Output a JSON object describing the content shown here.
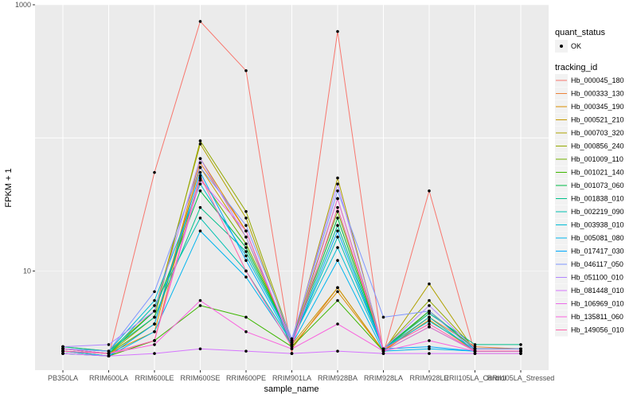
{
  "chart_data": {
    "type": "line",
    "xlabel": "sample_name",
    "ylabel": "FPKM + 1",
    "y_scale": "log10",
    "ylim": [
      1.8,
      1000
    ],
    "y_ticks": [
      {
        "value": 10,
        "label": "10"
      },
      {
        "value": 1000,
        "label": "1000"
      }
    ],
    "grid": true,
    "categories": [
      "PB350LA",
      "RRIM600LA",
      "RRIM600LE",
      "RRIM600SE",
      "RRIM600PE",
      "RRIM901LA",
      "RRIM928BA",
      "RRIM928LA",
      "RRIM928LE",
      "RRII105LA_Control",
      "RRII105LA_Stressed"
    ],
    "legend_groups": [
      {
        "title": "quant_status",
        "entries": [
          "OK"
        ]
      },
      {
        "title": "tracking_id"
      }
    ],
    "series": [
      {
        "name": "Hb_000045_180",
        "color": "#F8766D",
        "values": [
          2.5,
          2.3,
          55,
          750,
          320,
          2.4,
          630,
          2.4,
          40,
          2.4,
          2.4
        ]
      },
      {
        "name": "Hb_000333_130",
        "color": "#EC8239",
        "values": [
          2.5,
          2.3,
          3.0,
          65,
          20,
          2.6,
          7.5,
          2.5,
          4.5,
          2.7,
          2.6
        ]
      },
      {
        "name": "Hb_000345_190",
        "color": "#DB8E00",
        "values": [
          2.6,
          2.4,
          3.5,
          70,
          20,
          2.7,
          7.0,
          2.5,
          4.3,
          2.5,
          2.5
        ]
      },
      {
        "name": "Hb_000521_210",
        "color": "#C79800",
        "values": [
          2.5,
          2.3,
          4.0,
          60,
          18,
          2.8,
          7.5,
          2.5,
          5.0,
          2.6,
          2.6
        ]
      },
      {
        "name": "Hb_000703_320",
        "color": "#AFA100",
        "values": [
          2.7,
          2.5,
          5.0,
          90,
          25,
          2.9,
          50,
          2.5,
          8.0,
          2.5,
          2.5
        ]
      },
      {
        "name": "Hb_000856_240",
        "color": "#94A900",
        "values": [
          2.6,
          2.4,
          4.5,
          95,
          28,
          3.0,
          35,
          2.6,
          6.0,
          2.6,
          2.6
        ]
      },
      {
        "name": "Hb_001009_110",
        "color": "#72B000",
        "values": [
          2.5,
          2.4,
          4.0,
          50,
          16,
          3.0,
          28,
          2.6,
          5.0,
          2.5,
          2.5
        ]
      },
      {
        "name": "Hb_001021_140",
        "color": "#3DB700",
        "values": [
          2.4,
          2.3,
          3.0,
          5.5,
          4.5,
          2.7,
          6.0,
          2.5,
          3.8,
          2.5,
          2.5
        ]
      },
      {
        "name": "Hb_001073_060",
        "color": "#00BC45",
        "values": [
          2.6,
          2.4,
          5.0,
          40,
          15,
          3.0,
          25,
          2.6,
          5.0,
          2.6,
          2.6
        ]
      },
      {
        "name": "Hb_001838_010",
        "color": "#00C08B",
        "values": [
          2.7,
          2.5,
          4.5,
          30,
          14,
          3.0,
          22,
          2.6,
          4.8,
          2.8,
          2.8
        ]
      },
      {
        "name": "Hb_002219_090",
        "color": "#00C0B2",
        "values": [
          2.5,
          2.4,
          5.5,
          25,
          10,
          2.9,
          18,
          2.6,
          4.5,
          2.5,
          2.5
        ]
      },
      {
        "name": "Hb_003938_010",
        "color": "#00BCD6",
        "values": [
          2.6,
          2.5,
          6.0,
          45,
          13,
          3.0,
          15,
          2.6,
          4.2,
          2.6,
          2.6
        ]
      },
      {
        "name": "Hb_005081_080",
        "color": "#00B5EE",
        "values": [
          2.5,
          2.3,
          3.5,
          20,
          9,
          2.8,
          12,
          2.5,
          2.6,
          2.5,
          2.5
        ]
      },
      {
        "name": "Hb_017417_030",
        "color": "#00A9FF",
        "values": [
          2.4,
          2.3,
          4.0,
          55,
          12,
          2.9,
          20,
          2.6,
          2.7,
          2.5,
          2.5
        ]
      },
      {
        "name": "Hb_046117_050",
        "color": "#7F96FF",
        "values": [
          2.6,
          2.5,
          7.0,
          60,
          22,
          3.1,
          40,
          4.5,
          5.0,
          2.5,
          2.5
        ]
      },
      {
        "name": "Hb_051100_010",
        "color": "#B186FF",
        "values": [
          2.7,
          2.8,
          5.0,
          70,
          18,
          3.0,
          45,
          2.6,
          5.5,
          2.6,
          2.6
        ]
      },
      {
        "name": "Hb_081448_010",
        "color": "#D575FE",
        "values": [
          2.4,
          2.3,
          2.4,
          2.6,
          2.5,
          2.4,
          2.5,
          2.4,
          2.4,
          2.4,
          2.4
        ]
      },
      {
        "name": "Hb_106969_010",
        "color": "#EB6AEA",
        "values": [
          2.5,
          2.4,
          3.0,
          48,
          20,
          2.8,
          35,
          2.5,
          3.8,
          2.5,
          2.5
        ]
      },
      {
        "name": "Hb_135811_060",
        "color": "#F962DD",
        "values": [
          2.6,
          2.4,
          2.8,
          6.0,
          3.5,
          2.6,
          4.0,
          2.5,
          3.0,
          2.5,
          2.5
        ]
      },
      {
        "name": "Hb_149056_010",
        "color": "#FF65AC",
        "values": [
          2.5,
          2.4,
          3.0,
          52,
          10,
          2.7,
          30,
          2.6,
          4.0,
          2.5,
          2.5
        ]
      }
    ]
  }
}
